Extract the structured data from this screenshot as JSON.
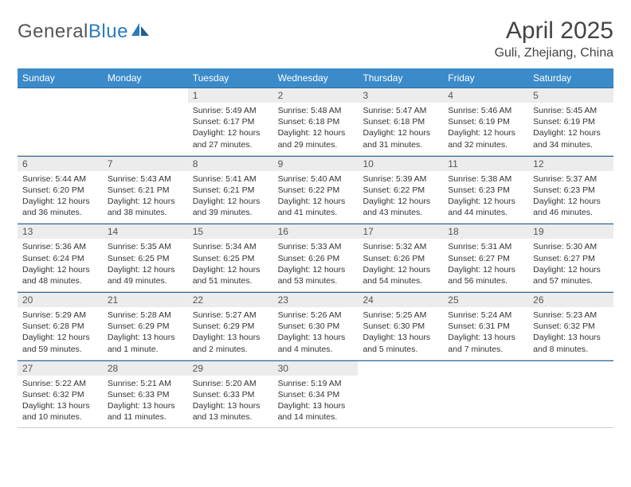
{
  "logo": {
    "word1": "General",
    "word2": "Blue"
  },
  "title": "April 2025",
  "subtitle": "Guli, Zhejiang, China",
  "colors": {
    "header_bg": "#3b8bca",
    "header_text": "#ffffff",
    "week_border": "#2f6d9e",
    "daynum_bg": "#ececec",
    "text": "#333333",
    "logo_gray": "#555555",
    "logo_blue": "#2b7bbd"
  },
  "day_labels": [
    "Sunday",
    "Monday",
    "Tuesday",
    "Wednesday",
    "Thursday",
    "Friday",
    "Saturday"
  ],
  "weeks": [
    [
      {
        "empty": true
      },
      {
        "empty": true
      },
      {
        "n": "1",
        "sr": "Sunrise: 5:49 AM",
        "ss": "Sunset: 6:17 PM",
        "dl": "Daylight: 12 hours and 27 minutes."
      },
      {
        "n": "2",
        "sr": "Sunrise: 5:48 AM",
        "ss": "Sunset: 6:18 PM",
        "dl": "Daylight: 12 hours and 29 minutes."
      },
      {
        "n": "3",
        "sr": "Sunrise: 5:47 AM",
        "ss": "Sunset: 6:18 PM",
        "dl": "Daylight: 12 hours and 31 minutes."
      },
      {
        "n": "4",
        "sr": "Sunrise: 5:46 AM",
        "ss": "Sunset: 6:19 PM",
        "dl": "Daylight: 12 hours and 32 minutes."
      },
      {
        "n": "5",
        "sr": "Sunrise: 5:45 AM",
        "ss": "Sunset: 6:19 PM",
        "dl": "Daylight: 12 hours and 34 minutes."
      }
    ],
    [
      {
        "n": "6",
        "sr": "Sunrise: 5:44 AM",
        "ss": "Sunset: 6:20 PM",
        "dl": "Daylight: 12 hours and 36 minutes."
      },
      {
        "n": "7",
        "sr": "Sunrise: 5:43 AM",
        "ss": "Sunset: 6:21 PM",
        "dl": "Daylight: 12 hours and 38 minutes."
      },
      {
        "n": "8",
        "sr": "Sunrise: 5:41 AM",
        "ss": "Sunset: 6:21 PM",
        "dl": "Daylight: 12 hours and 39 minutes."
      },
      {
        "n": "9",
        "sr": "Sunrise: 5:40 AM",
        "ss": "Sunset: 6:22 PM",
        "dl": "Daylight: 12 hours and 41 minutes."
      },
      {
        "n": "10",
        "sr": "Sunrise: 5:39 AM",
        "ss": "Sunset: 6:22 PM",
        "dl": "Daylight: 12 hours and 43 minutes."
      },
      {
        "n": "11",
        "sr": "Sunrise: 5:38 AM",
        "ss": "Sunset: 6:23 PM",
        "dl": "Daylight: 12 hours and 44 minutes."
      },
      {
        "n": "12",
        "sr": "Sunrise: 5:37 AM",
        "ss": "Sunset: 6:23 PM",
        "dl": "Daylight: 12 hours and 46 minutes."
      }
    ],
    [
      {
        "n": "13",
        "sr": "Sunrise: 5:36 AM",
        "ss": "Sunset: 6:24 PM",
        "dl": "Daylight: 12 hours and 48 minutes."
      },
      {
        "n": "14",
        "sr": "Sunrise: 5:35 AM",
        "ss": "Sunset: 6:25 PM",
        "dl": "Daylight: 12 hours and 49 minutes."
      },
      {
        "n": "15",
        "sr": "Sunrise: 5:34 AM",
        "ss": "Sunset: 6:25 PM",
        "dl": "Daylight: 12 hours and 51 minutes."
      },
      {
        "n": "16",
        "sr": "Sunrise: 5:33 AM",
        "ss": "Sunset: 6:26 PM",
        "dl": "Daylight: 12 hours and 53 minutes."
      },
      {
        "n": "17",
        "sr": "Sunrise: 5:32 AM",
        "ss": "Sunset: 6:26 PM",
        "dl": "Daylight: 12 hours and 54 minutes."
      },
      {
        "n": "18",
        "sr": "Sunrise: 5:31 AM",
        "ss": "Sunset: 6:27 PM",
        "dl": "Daylight: 12 hours and 56 minutes."
      },
      {
        "n": "19",
        "sr": "Sunrise: 5:30 AM",
        "ss": "Sunset: 6:27 PM",
        "dl": "Daylight: 12 hours and 57 minutes."
      }
    ],
    [
      {
        "n": "20",
        "sr": "Sunrise: 5:29 AM",
        "ss": "Sunset: 6:28 PM",
        "dl": "Daylight: 12 hours and 59 minutes."
      },
      {
        "n": "21",
        "sr": "Sunrise: 5:28 AM",
        "ss": "Sunset: 6:29 PM",
        "dl": "Daylight: 13 hours and 1 minute."
      },
      {
        "n": "22",
        "sr": "Sunrise: 5:27 AM",
        "ss": "Sunset: 6:29 PM",
        "dl": "Daylight: 13 hours and 2 minutes."
      },
      {
        "n": "23",
        "sr": "Sunrise: 5:26 AM",
        "ss": "Sunset: 6:30 PM",
        "dl": "Daylight: 13 hours and 4 minutes."
      },
      {
        "n": "24",
        "sr": "Sunrise: 5:25 AM",
        "ss": "Sunset: 6:30 PM",
        "dl": "Daylight: 13 hours and 5 minutes."
      },
      {
        "n": "25",
        "sr": "Sunrise: 5:24 AM",
        "ss": "Sunset: 6:31 PM",
        "dl": "Daylight: 13 hours and 7 minutes."
      },
      {
        "n": "26",
        "sr": "Sunrise: 5:23 AM",
        "ss": "Sunset: 6:32 PM",
        "dl": "Daylight: 13 hours and 8 minutes."
      }
    ],
    [
      {
        "n": "27",
        "sr": "Sunrise: 5:22 AM",
        "ss": "Sunset: 6:32 PM",
        "dl": "Daylight: 13 hours and 10 minutes."
      },
      {
        "n": "28",
        "sr": "Sunrise: 5:21 AM",
        "ss": "Sunset: 6:33 PM",
        "dl": "Daylight: 13 hours and 11 minutes."
      },
      {
        "n": "29",
        "sr": "Sunrise: 5:20 AM",
        "ss": "Sunset: 6:33 PM",
        "dl": "Daylight: 13 hours and 13 minutes."
      },
      {
        "n": "30",
        "sr": "Sunrise: 5:19 AM",
        "ss": "Sunset: 6:34 PM",
        "dl": "Daylight: 13 hours and 14 minutes."
      },
      {
        "empty": true
      },
      {
        "empty": true
      },
      {
        "empty": true
      }
    ]
  ]
}
